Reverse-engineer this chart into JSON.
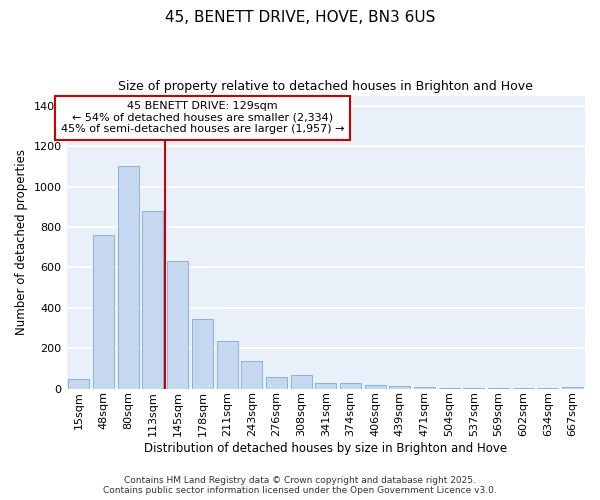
{
  "title": "45, BENETT DRIVE, HOVE, BN3 6US",
  "subtitle": "Size of property relative to detached houses in Brighton and Hove",
  "xlabel": "Distribution of detached houses by size in Brighton and Hove",
  "ylabel": "Number of detached properties",
  "categories": [
    "15sqm",
    "48sqm",
    "80sqm",
    "113sqm",
    "145sqm",
    "178sqm",
    "211sqm",
    "243sqm",
    "276sqm",
    "308sqm",
    "341sqm",
    "374sqm",
    "406sqm",
    "439sqm",
    "471sqm",
    "504sqm",
    "537sqm",
    "569sqm",
    "602sqm",
    "634sqm",
    "667sqm"
  ],
  "values": [
    50,
    760,
    1100,
    880,
    630,
    345,
    235,
    135,
    60,
    70,
    30,
    30,
    20,
    15,
    8,
    5,
    3,
    3,
    2,
    2,
    10
  ],
  "bar_color": "#c5d8f0",
  "bar_edgecolor": "#7aadd4",
  "plot_bg_color": "#eaf0fa",
  "fig_bg_color": "#ffffff",
  "grid_color": "#ffffff",
  "annotation_text": "45 BENETT DRIVE: 129sqm\n← 54% of detached houses are smaller (2,334)\n45% of semi-detached houses are larger (1,957) →",
  "annotation_box_color": "#ffffff",
  "annotation_box_edgecolor": "#cc0000",
  "vline_color": "#cc0000",
  "footer": "Contains HM Land Registry data © Crown copyright and database right 2025.\nContains public sector information licensed under the Open Government Licence v3.0.",
  "ylim": [
    0,
    1450
  ],
  "yticks": [
    0,
    200,
    400,
    600,
    800,
    1000,
    1200,
    1400
  ],
  "title_fontsize": 11,
  "subtitle_fontsize": 9,
  "label_fontsize": 8.5,
  "tick_fontsize": 8,
  "annotation_fontsize": 8,
  "footer_fontsize": 6.5
}
